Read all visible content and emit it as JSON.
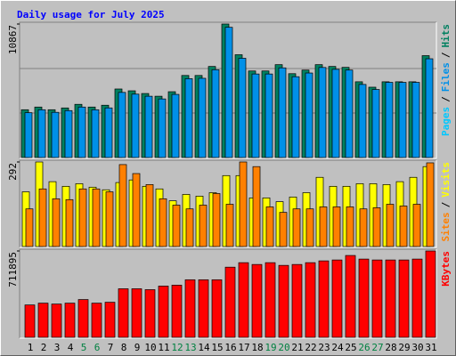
{
  "chart_data": [
    {
      "type": "bar",
      "title": "Daily usage for July 2025",
      "label_separator": "/",
      "y_label_extra": {
        "text": "Pages",
        "color": "#00c8ff"
      },
      "ylim": [
        0,
        10867
      ],
      "yticks": [
        10867
      ],
      "series": [
        {
          "name": "Hits",
          "color": "#008060",
          "values": [
            3891,
            4110,
            3891,
            4037,
            4331,
            4110,
            4257,
            5579,
            5432,
            5211,
            4991,
            5358,
            6680,
            6680,
            7414,
            10867,
            8368,
            7047,
            7047,
            7560,
            6826,
            7120,
            7560,
            7414,
            7340,
            6166,
            5725,
            6166,
            6166,
            6166,
            8294
          ]
        },
        {
          "name": "Files",
          "color": "#0090e8",
          "values": [
            3650,
            3890,
            3680,
            3820,
            4110,
            3890,
            4040,
            5300,
            5160,
            4990,
            4770,
            5140,
            6420,
            6450,
            7150,
            10600,
            8080,
            6800,
            6800,
            7300,
            6580,
            6880,
            7330,
            7180,
            7120,
            5950,
            5540,
            6120,
            6120,
            6120,
            8040
          ]
        }
      ]
    },
    {
      "type": "bar",
      "ylim": [
        0,
        292
      ],
      "yticks": [
        292
      ],
      "series": [
        {
          "name": "Visits",
          "color": "#ffff00",
          "values": [
            189,
            292,
            224,
            208,
            217,
            205,
            196,
            221,
            230,
            208,
            199,
            158,
            180,
            174,
            186,
            245,
            245,
            168,
            168,
            155,
            171,
            186,
            239,
            208,
            208,
            217,
            217,
            214,
            224,
            239,
            276
          ]
        },
        {
          "name": "Sites",
          "color": "#ff8000",
          "values": [
            130,
            199,
            165,
            162,
            199,
            199,
            189,
            283,
            252,
            214,
            165,
            143,
            130,
            143,
            183,
            146,
            292,
            276,
            137,
            118,
            130,
            130,
            137,
            137,
            137,
            130,
            134,
            146,
            140,
            146,
            289
          ]
        }
      ]
    },
    {
      "type": "bar",
      "ylim": [
        0,
        711895
      ],
      "yticks": [
        711895
      ],
      "categories": [
        "1",
        "2",
        "3",
        "4",
        "5",
        "6",
        "7",
        "8",
        "9",
        "10",
        "11",
        "12",
        "13",
        "14",
        "15",
        "16",
        "17",
        "18",
        "19",
        "20",
        "21",
        "22",
        "23",
        "24",
        "25",
        "26",
        "27",
        "28",
        "29",
        "30",
        "31"
      ],
      "category_colors": [
        "#000000",
        "#000000",
        "#000000",
        "#000000",
        "#008040",
        "#008040",
        "#000000",
        "#000000",
        "#000000",
        "#000000",
        "#000000",
        "#008040",
        "#008040",
        "#000000",
        "#000000",
        "#000000",
        "#000000",
        "#000000",
        "#008040",
        "#008040",
        "#000000",
        "#000000",
        "#000000",
        "#000000",
        "#000000",
        "#008040",
        "#008040",
        "#000000",
        "#000000",
        "#000000",
        "#000000"
      ],
      "series": [
        {
          "name": "KBytes",
          "color": "#ff0000",
          "values": [
            266962,
            281793,
            274377,
            281793,
            311455,
            281793,
            289208,
            400442,
            400442,
            393027,
            422689,
            430105,
            474598,
            474598,
            474598,
            578417,
            615494,
            600663,
            615494,
            593248,
            600663,
            615494,
            630326,
            637741,
            674819,
            645157,
            637741,
            637741,
            637741,
            645157,
            711895
          ]
        }
      ]
    }
  ]
}
